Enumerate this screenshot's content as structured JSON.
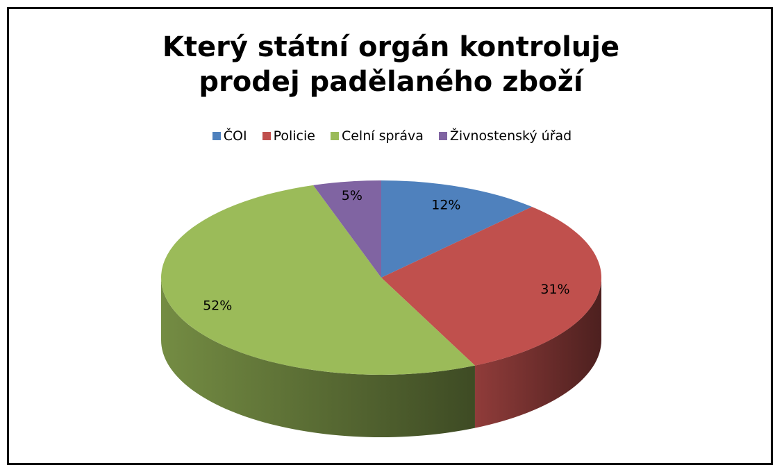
{
  "chart_data": {
    "type": "pie3d",
    "title": "Který státní orgán kontroluje prodej padělaného zboží",
    "categories": [
      "ČOI",
      "Policie",
      "Celní správa",
      "Živnostenský úřad"
    ],
    "values": [
      12,
      31,
      52,
      5
    ],
    "value_labels": [
      "12%",
      "31%",
      "52%",
      "5%"
    ],
    "colors": [
      "#4f81bd",
      "#c0504d",
      "#9bbb59",
      "#8064a2"
    ],
    "legend": "top"
  }
}
